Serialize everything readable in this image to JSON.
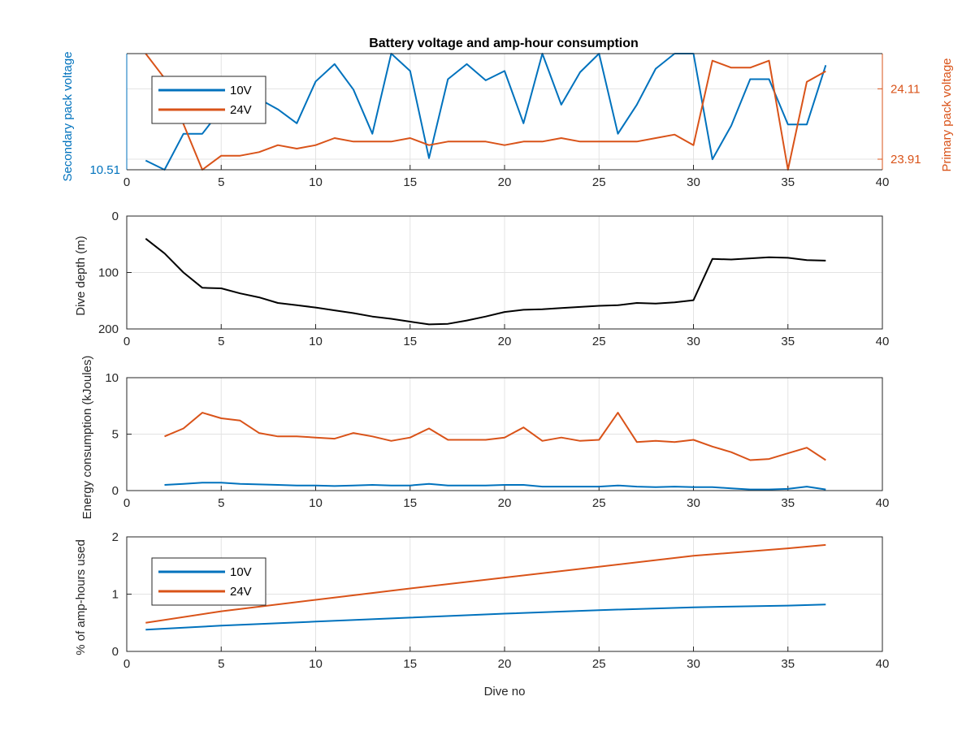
{
  "colors": {
    "v10": "#0072BD",
    "v24": "#D95319",
    "depth": "#000000",
    "grid": "#e3e3e3",
    "axis": "#262626"
  },
  "chart_data": [
    {
      "id": "voltage",
      "type": "line",
      "title": "Battery voltage and amp-hour consumption",
      "xlim": [
        0,
        40
      ],
      "xticks": [
        0,
        5,
        10,
        15,
        20,
        25,
        30,
        35,
        40
      ],
      "ylabel_left": "Secondary pack voltage",
      "ylabel_right": "Primary pack voltage",
      "ylim_left": [
        10.51,
        10.61
      ],
      "ylim_right": [
        23.88,
        24.21
      ],
      "yticks_left": [
        "10.51"
      ],
      "yticks_right": [
        "23.91",
        "24.11"
      ],
      "legend": {
        "position": "top-left",
        "entries": [
          "10V",
          "24V"
        ]
      },
      "series": [
        {
          "name": "10V",
          "axis": "left",
          "color": "#0072BD",
          "x": [
            1,
            2,
            3,
            4,
            5,
            6,
            7,
            8,
            9,
            10,
            11,
            12,
            13,
            14,
            15,
            16,
            17,
            18,
            19,
            20,
            21,
            22,
            23,
            24,
            25,
            26,
            27,
            28,
            29,
            30,
            31,
            32,
            33,
            34,
            35,
            36,
            37
          ],
          "y": [
            10.518,
            10.51,
            10.541,
            10.541,
            10.562,
            10.578,
            10.571,
            10.562,
            10.55,
            10.586,
            10.601,
            10.579,
            10.541,
            10.61,
            10.595,
            10.52,
            10.588,
            10.601,
            10.587,
            10.595,
            10.55,
            10.61,
            10.566,
            10.594,
            10.61,
            10.541,
            10.566,
            10.597,
            10.61,
            10.61,
            10.519,
            10.548,
            10.588,
            10.588,
            10.549,
            10.549,
            10.6
          ]
        },
        {
          "name": "24V",
          "axis": "right",
          "color": "#D95319",
          "x": [
            1,
            2,
            3,
            4,
            5,
            6,
            7,
            8,
            9,
            10,
            11,
            12,
            13,
            14,
            15,
            16,
            17,
            18,
            19,
            20,
            21,
            22,
            23,
            24,
            25,
            26,
            27,
            28,
            29,
            30,
            31,
            32,
            33,
            34,
            35,
            36,
            37
          ],
          "y": [
            24.21,
            24.14,
            24.01,
            23.88,
            23.92,
            23.92,
            23.93,
            23.95,
            23.94,
            23.95,
            23.97,
            23.96,
            23.96,
            23.96,
            23.97,
            23.95,
            23.96,
            23.96,
            23.96,
            23.95,
            23.96,
            23.96,
            23.97,
            23.96,
            23.96,
            23.96,
            23.96,
            23.97,
            23.98,
            23.95,
            24.19,
            24.17,
            24.17,
            24.19,
            23.88,
            24.13,
            24.16
          ]
        }
      ]
    },
    {
      "id": "depth",
      "type": "line",
      "title": "",
      "xlim": [
        0,
        40
      ],
      "xticks": [
        0,
        5,
        10,
        15,
        20,
        25,
        30,
        35,
        40
      ],
      "ylabel": "Dive depth (m)",
      "ylim": [
        0,
        200
      ],
      "y_reversed": true,
      "yticks": [
        0,
        100,
        200
      ],
      "series": [
        {
          "name": "",
          "color": "#000000",
          "x": [
            1,
            2,
            3,
            4,
            5,
            6,
            7,
            8,
            9,
            10,
            11,
            12,
            13,
            14,
            15,
            16,
            17,
            18,
            19,
            20,
            21,
            22,
            23,
            24,
            25,
            26,
            27,
            28,
            29,
            30,
            31,
            32,
            33,
            34,
            35,
            36,
            37
          ],
          "y": [
            40,
            66,
            100,
            127,
            128,
            137,
            144,
            154,
            158,
            162,
            167,
            172,
            178,
            182,
            187,
            192,
            191,
            185,
            178,
            170,
            166,
            165,
            163,
            161,
            159,
            158,
            154,
            155,
            153,
            149,
            76,
            77,
            75,
            73,
            74,
            78,
            79
          ]
        }
      ]
    },
    {
      "id": "energy",
      "type": "line",
      "title": "",
      "xlim": [
        0,
        40
      ],
      "xticks": [
        0,
        5,
        10,
        15,
        20,
        25,
        30,
        35,
        40
      ],
      "ylabel": "Energy consumption (kJoules)",
      "ylim": [
        0,
        10
      ],
      "yticks": [
        0,
        5,
        10
      ],
      "series": [
        {
          "name": "10V",
          "color": "#0072BD",
          "x": [
            2,
            3,
            4,
            5,
            6,
            7,
            8,
            9,
            10,
            11,
            12,
            13,
            14,
            15,
            16,
            17,
            18,
            19,
            20,
            21,
            22,
            23,
            24,
            25,
            26,
            27,
            28,
            29,
            30,
            31,
            32,
            33,
            34,
            35,
            36,
            37
          ],
          "y": [
            0.5,
            0.6,
            0.7,
            0.7,
            0.6,
            0.55,
            0.5,
            0.45,
            0.45,
            0.4,
            0.45,
            0.5,
            0.45,
            0.45,
            0.6,
            0.45,
            0.45,
            0.45,
            0.5,
            0.5,
            0.35,
            0.35,
            0.35,
            0.35,
            0.45,
            0.35,
            0.3,
            0.35,
            0.3,
            0.3,
            0.2,
            0.1,
            0.1,
            0.15,
            0.35,
            0.1
          ]
        },
        {
          "name": "24V",
          "color": "#D95319",
          "x": [
            2,
            3,
            4,
            5,
            6,
            7,
            8,
            9,
            10,
            11,
            12,
            13,
            14,
            15,
            16,
            17,
            18,
            19,
            20,
            21,
            22,
            23,
            24,
            25,
            26,
            27,
            28,
            29,
            30,
            31,
            32,
            33,
            34,
            35,
            36,
            37
          ],
          "y": [
            4.8,
            5.5,
            6.9,
            6.4,
            6.2,
            5.1,
            4.8,
            4.8,
            4.7,
            4.6,
            5.1,
            4.8,
            4.4,
            4.7,
            5.5,
            4.5,
            4.5,
            4.5,
            4.7,
            5.6,
            4.4,
            4.7,
            4.4,
            4.5,
            6.9,
            4.3,
            4.4,
            4.3,
            4.5,
            3.9,
            3.4,
            2.7,
            2.8,
            3.3,
            3.8,
            2.7
          ]
        }
      ]
    },
    {
      "id": "amphours",
      "type": "line",
      "title": "",
      "xlim": [
        0,
        40
      ],
      "xticks": [
        0,
        5,
        10,
        15,
        20,
        25,
        30,
        35,
        40
      ],
      "xlabel": "Dive no",
      "ylabel": "% of amp-hours used",
      "ylim": [
        0,
        2
      ],
      "yticks": [
        0,
        1,
        2
      ],
      "legend": {
        "position": "top-left",
        "entries": [
          "10V",
          "24V"
        ]
      },
      "series": [
        {
          "name": "10V",
          "color": "#0072BD",
          "x": [
            1,
            5,
            10,
            15,
            20,
            25,
            30,
            35,
            37
          ],
          "y": [
            0.38,
            0.45,
            0.52,
            0.59,
            0.66,
            0.72,
            0.77,
            0.8,
            0.82
          ]
        },
        {
          "name": "24V",
          "color": "#D95319",
          "x": [
            1,
            5,
            10,
            15,
            20,
            25,
            30,
            35,
            37
          ],
          "y": [
            0.5,
            0.7,
            0.9,
            1.1,
            1.29,
            1.48,
            1.67,
            1.8,
            1.86
          ]
        }
      ]
    }
  ]
}
